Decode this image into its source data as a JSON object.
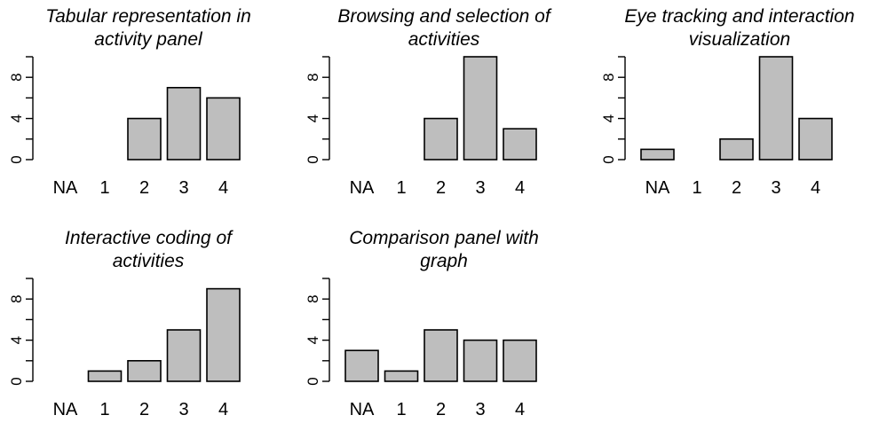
{
  "chart_data": [
    {
      "type": "bar",
      "title_lines": [
        "Tabular representation in",
        "activity panel"
      ],
      "categories": [
        "NA",
        "1",
        "2",
        "3",
        "4"
      ],
      "values": [
        0,
        0,
        4,
        7,
        6
      ],
      "ylim": [
        0,
        10
      ],
      "yticks": [
        "0",
        "4",
        "8"
      ],
      "bar_color": "#bebebe"
    },
    {
      "type": "bar",
      "title_lines": [
        "Browsing and selection of",
        "activities"
      ],
      "categories": [
        "NA",
        "1",
        "2",
        "3",
        "4"
      ],
      "values": [
        0,
        0,
        4,
        10,
        3
      ],
      "ylim": [
        0,
        10
      ],
      "yticks": [
        "0",
        "4",
        "8"
      ],
      "bar_color": "#bebebe"
    },
    {
      "type": "bar",
      "title_lines": [
        "Eye tracking and interaction",
        "visualization"
      ],
      "categories": [
        "NA",
        "1",
        "2",
        "3",
        "4"
      ],
      "values": [
        1,
        0,
        2,
        10,
        4
      ],
      "ylim": [
        0,
        10
      ],
      "yticks": [
        "0",
        "4",
        "8"
      ],
      "bar_color": "#bebebe"
    },
    {
      "type": "bar",
      "title_lines": [
        "Interactive coding of",
        "activities"
      ],
      "categories": [
        "NA",
        "1",
        "2",
        "3",
        "4"
      ],
      "values": [
        0,
        1,
        2,
        5,
        9
      ],
      "ylim": [
        0,
        10
      ],
      "yticks": [
        "0",
        "4",
        "8"
      ],
      "bar_color": "#bebebe"
    },
    {
      "type": "bar",
      "title_lines": [
        "Comparison panel with",
        "graph"
      ],
      "categories": [
        "NA",
        "1",
        "2",
        "3",
        "4"
      ],
      "values": [
        3,
        1,
        5,
        4,
        4
      ],
      "ylim": [
        0,
        10
      ],
      "yticks": [
        "0",
        "4",
        "8"
      ],
      "bar_color": "#bebebe"
    }
  ]
}
